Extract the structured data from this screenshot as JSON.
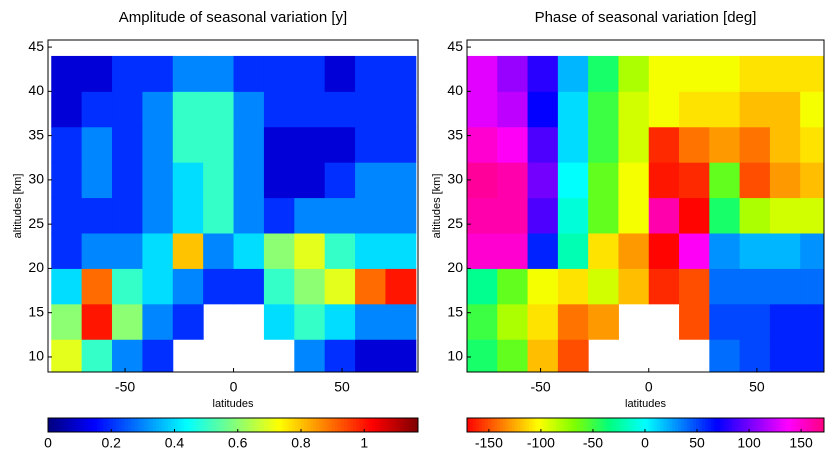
{
  "chart_data": [
    {
      "type": "heatmap",
      "title": "Amplitude of seasonal variation [y]",
      "xlabel": "latitudes",
      "ylabel": "altitudes [km]",
      "x": [
        -77,
        -63,
        -49,
        -35,
        -21,
        -7,
        7,
        21,
        35,
        49,
        63,
        77
      ],
      "y": [
        10,
        14,
        18,
        22,
        26,
        30,
        34,
        38,
        42
      ],
      "z": [
        [
          0.7,
          0.5,
          0.3,
          0.2,
          null,
          null,
          null,
          null,
          0.3,
          0.2,
          0.1,
          0.1
        ],
        [
          0.6,
          1.0,
          0.6,
          0.3,
          0.2,
          null,
          null,
          0.4,
          0.5,
          0.4,
          0.3,
          0.3
        ],
        [
          0.4,
          0.9,
          0.5,
          0.4,
          0.3,
          0.2,
          0.2,
          0.5,
          0.6,
          0.7,
          0.9,
          1.0
        ],
        [
          0.2,
          0.3,
          0.3,
          0.4,
          0.8,
          0.3,
          0.4,
          0.6,
          0.7,
          0.5,
          0.4,
          0.4
        ],
        [
          0.2,
          0.2,
          0.2,
          0.3,
          0.4,
          0.5,
          0.3,
          0.2,
          0.3,
          0.3,
          0.3,
          0.3
        ],
        [
          0.2,
          0.3,
          0.2,
          0.3,
          0.4,
          0.5,
          0.3,
          0.1,
          0.1,
          0.2,
          0.3,
          0.3
        ],
        [
          0.2,
          0.3,
          0.2,
          0.3,
          0.5,
          0.5,
          0.3,
          0.1,
          0.1,
          0.1,
          0.2,
          0.2
        ],
        [
          0.1,
          0.2,
          0.2,
          0.3,
          0.5,
          0.5,
          0.3,
          0.2,
          0.2,
          0.2,
          0.2,
          0.2
        ],
        [
          0.1,
          0.1,
          0.2,
          0.2,
          0.3,
          0.3,
          0.2,
          0.2,
          0.2,
          0.1,
          0.2,
          0.2
        ]
      ],
      "xlim": [
        -85.5,
        85
      ],
      "ylim": [
        8.3,
        45.8
      ],
      "xticks": [
        -50,
        0,
        50
      ],
      "yticks": [
        10,
        15,
        20,
        25,
        30,
        35,
        40,
        45
      ],
      "colorbar": {
        "lim": [
          0,
          1.17
        ],
        "ticks": [
          0,
          0.2,
          0.4,
          0.6,
          0.8,
          1
        ],
        "colormap": [
          "#00007f",
          "#0000ff",
          "#007fff",
          "#00ffff",
          "#7fff7f",
          "#ffff00",
          "#ff7f00",
          "#ff0000",
          "#7f0000"
        ]
      }
    },
    {
      "type": "heatmap",
      "title": "Phase of seasonal variation [deg]",
      "xlabel": "latitudes",
      "ylabel": "altitudes [km]",
      "x": [
        -77,
        -63,
        -49,
        -35,
        -21,
        -7,
        7,
        21,
        35,
        49,
        63,
        77
      ],
      "y": [
        10,
        14,
        18,
        22,
        26,
        30,
        34,
        38,
        42
      ],
      "z": [
        [
          -40,
          -60,
          -120,
          -150,
          null,
          null,
          null,
          null,
          40,
          50,
          60,
          60
        ],
        [
          -50,
          -80,
          -110,
          -140,
          -130,
          null,
          null,
          -150,
          50,
          50,
          60,
          60
        ],
        [
          -30,
          -60,
          -100,
          -110,
          -90,
          -120,
          -160,
          -150,
          40,
          40,
          40,
          40
        ],
        [
          150,
          150,
          60,
          -20,
          -110,
          -130,
          -170,
          140,
          30,
          20,
          20,
          30
        ],
        [
          160,
          160,
          90,
          -10,
          -60,
          -100,
          160,
          -170,
          -40,
          -80,
          -90,
          -90
        ],
        [
          165,
          160,
          100,
          0,
          -60,
          -100,
          -165,
          -160,
          -60,
          -150,
          -130,
          -120
        ],
        [
          150,
          140,
          90,
          10,
          -50,
          -90,
          -160,
          -140,
          -130,
          -140,
          -120,
          -110
        ],
        [
          130,
          120,
          70,
          10,
          -50,
          -90,
          -100,
          -110,
          -110,
          -120,
          -120,
          -100
        ],
        [
          130,
          110,
          80,
          20,
          -40,
          -80,
          -100,
          -100,
          -100,
          -110,
          -110,
          -110
        ]
      ],
      "xlim": [
        -84,
        81
      ],
      "ylim": [
        8.3,
        45.8
      ],
      "xticks": [
        -50,
        0,
        50
      ],
      "yticks": [
        10,
        15,
        20,
        25,
        30,
        35,
        40,
        45
      ],
      "colorbar": {
        "lim": [
          -171,
          172
        ],
        "ticks": [
          -150,
          -100,
          -50,
          0,
          50,
          100,
          150
        ],
        "colormap": [
          "#ff0000",
          "#ff8000",
          "#ffff00",
          "#80ff00",
          "#00ff80",
          "#00ffff",
          "#0080ff",
          "#0000ff",
          "#8000ff",
          "#ff00ff",
          "#ff0080"
        ]
      }
    }
  ]
}
